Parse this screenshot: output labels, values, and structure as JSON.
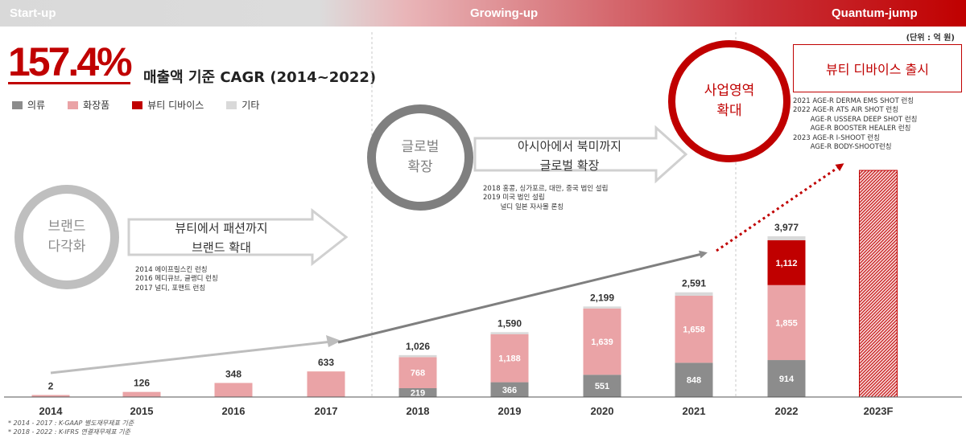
{
  "banner": {
    "startup": "Start-up",
    "growing": "Growing-up",
    "quantum": "Quantum-jump"
  },
  "headline": {
    "cagr": "157.4%",
    "label": "매출액 기준 CAGR (2014~2022)"
  },
  "unit": "(단위 : 억 원)",
  "legend": [
    {
      "name": "의류",
      "color": "#8c8c8c"
    },
    {
      "name": "화장품",
      "color": "#eaa3a6"
    },
    {
      "name": "뷰티 디바이스",
      "color": "#c00000"
    },
    {
      "name": "기타",
      "color": "#d9d9d9"
    }
  ],
  "phases": {
    "brand": {
      "circle": [
        "브랜드",
        "다각화"
      ],
      "arrow": [
        "뷰티에서 패션까지",
        "브랜드 확대"
      ],
      "notes": "2014 에이프릴스킨 런칭\n2016 메디큐브, 글랭디 런칭\n2017 널디, 포맨트 런칭"
    },
    "global": {
      "circle": [
        "글로벌",
        "확장"
      ],
      "arrow": [
        "아시아에서 북미까지",
        "글로벌 확장"
      ],
      "notes": "2018 홍콩, 싱가포르, 대만, 중국 법인 설립\n2019 미국 법인 설립\n        널디 일본 자사몰 론칭"
    },
    "business": {
      "circle": [
        "사업영역",
        "확대"
      ],
      "box": "뷰티 디바이스 출시",
      "notes": "2021 AGE-R DERMA EMS SHOT 런칭\n2022 AGE-R ATS AIR SHOT 런칭\n        AGE-R USSERA DEEP SHOT 런칭\n        AGE-R BOOSTER HEALER 런칭\n2023 AGE-R I-SHOOT 런칭\n        AGE-R BODY-SHOOT런칭"
    }
  },
  "footnotes": [
    "* 2014 - 2017 : K-GAAP 별도재무제표 기준",
    "* 2018 - 2022 : K-IFRS 연결재무제표 기준"
  ],
  "chart_data": {
    "type": "bar",
    "stacked": true,
    "categories": [
      "2014",
      "2015",
      "2016",
      "2017",
      "2018",
      "2019",
      "2020",
      "2021",
      "2022",
      "2023F"
    ],
    "series": [
      {
        "name": "의류",
        "color": "#8c8c8c",
        "values": [
          0,
          0,
          0,
          0,
          219,
          366,
          551,
          848,
          914,
          null
        ]
      },
      {
        "name": "화장품",
        "color": "#eaa3a6",
        "values": [
          2,
          126,
          348,
          633,
          768,
          1188,
          1639,
          1658,
          1855,
          null
        ]
      },
      {
        "name": "뷰티 디바이스",
        "color": "#c00000",
        "values": [
          0,
          0,
          0,
          0,
          0,
          0,
          0,
          0,
          1112,
          null
        ]
      },
      {
        "name": "기타",
        "color": "#d9d9d9",
        "values": [
          0,
          0,
          0,
          0,
          39,
          36,
          9,
          85,
          96,
          null
        ]
      }
    ],
    "segment_labels": [
      [],
      [],
      [],
      [],
      [
        "219",
        "768"
      ],
      [
        "366",
        "1,188"
      ],
      [
        "551",
        "1,639"
      ],
      [
        "848",
        "1,658"
      ],
      [
        "914",
        "1,855",
        "1,112"
      ],
      []
    ],
    "totals": [
      "2",
      "126",
      "348",
      "633",
      "1,026",
      "1,590",
      "2,199",
      "2,591",
      "3,977",
      ""
    ],
    "forecast_category": "2023F",
    "ylim": [
      0,
      4000
    ]
  }
}
